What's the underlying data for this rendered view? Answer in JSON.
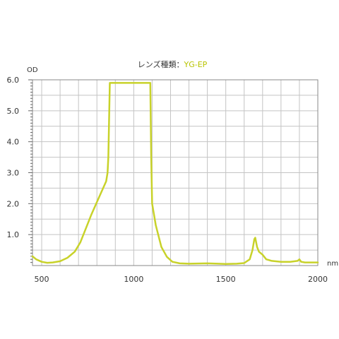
{
  "chart_data": {
    "type": "line",
    "title_prefix": "レンズ種類：",
    "title_value": "YG-EP",
    "y_unit_label": "OD",
    "x_unit_label": "nm",
    "xlim": [
      450,
      2000
    ],
    "ylim": [
      0,
      6.0
    ],
    "x_ticks": [
      500,
      1000,
      1500,
      2000
    ],
    "x_tick_labels": [
      "500",
      "1000",
      "1500",
      "2000"
    ],
    "y_ticks": [
      1.0,
      2.0,
      3.0,
      4.0,
      5.0,
      6.0
    ],
    "y_tick_labels": [
      "1.0",
      "2.0",
      "3.0",
      "4.0",
      "5.0",
      "6.0"
    ],
    "grid": true,
    "series": [
      {
        "color": "#c8d22a",
        "x": [
          450,
          470,
          500,
          530,
          560,
          600,
          640,
          680,
          710,
          740,
          770,
          800,
          830,
          850,
          858,
          862,
          870,
          1000,
          1090,
          1095,
          1100,
          1120,
          1150,
          1180,
          1210,
          1250,
          1300,
          1400,
          1500,
          1560,
          1600,
          1630,
          1645,
          1655,
          1660,
          1665,
          1670,
          1680,
          1700,
          1720,
          1750,
          1800,
          1850,
          1890,
          1900,
          1910,
          1930,
          1960,
          2000
        ],
        "y": [
          0.3,
          0.2,
          0.12,
          0.09,
          0.1,
          0.14,
          0.25,
          0.45,
          0.75,
          1.2,
          1.65,
          2.05,
          2.45,
          2.72,
          3.0,
          3.5,
          5.9,
          5.9,
          5.9,
          3.5,
          2.0,
          1.3,
          0.6,
          0.28,
          0.12,
          0.07,
          0.06,
          0.07,
          0.05,
          0.06,
          0.08,
          0.2,
          0.5,
          0.85,
          0.9,
          0.75,
          0.6,
          0.45,
          0.35,
          0.2,
          0.15,
          0.12,
          0.12,
          0.15,
          0.2,
          0.12,
          0.1,
          0.1,
          0.1
        ]
      }
    ]
  }
}
